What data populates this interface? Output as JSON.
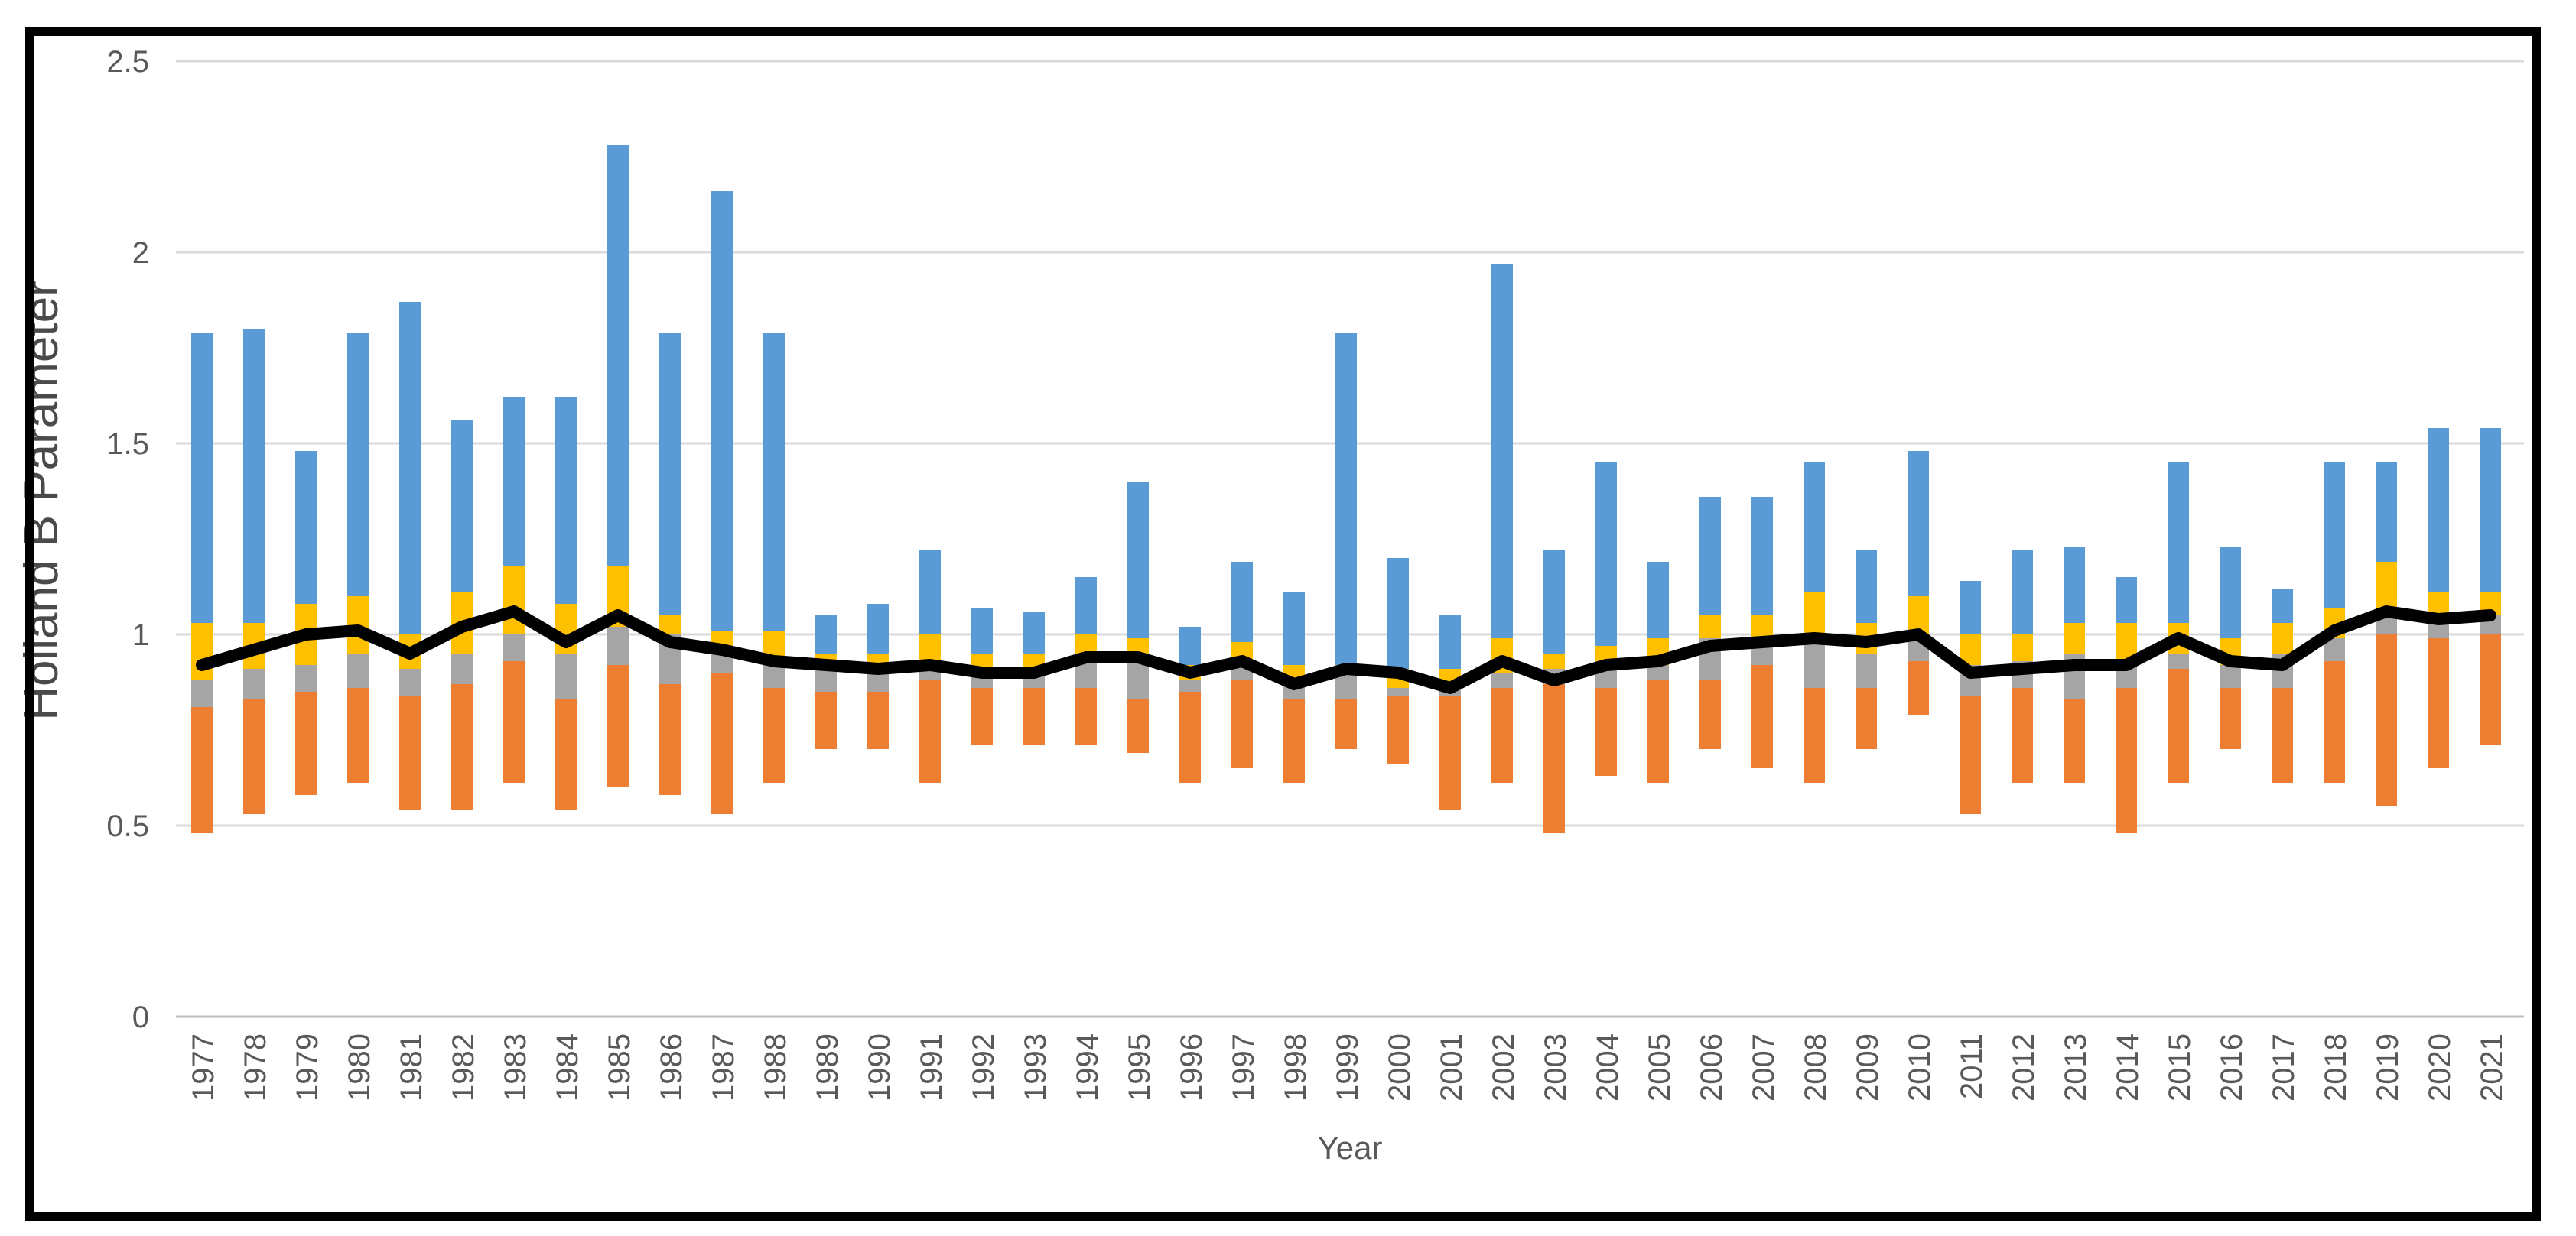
{
  "chart_data": {
    "type": "bar",
    "subtype": "stacked-floating-range-with-line",
    "title": "",
    "xlabel": "Year",
    "ylabel": "Holland B Parameter",
    "ylim": [
      0,
      2.5
    ],
    "grid": true,
    "legend": "none",
    "ytick_values": [
      0,
      0.5,
      1,
      1.5,
      2,
      2.5
    ],
    "ytick_labels": [
      "0",
      "0.5",
      "1",
      "1.5",
      "2",
      "2.5"
    ],
    "categories": [
      "1977",
      "1978",
      "1979",
      "1980",
      "1981",
      "1982",
      "1983",
      "1984",
      "1985",
      "1986",
      "1987",
      "1988",
      "1989",
      "1990",
      "1991",
      "1992",
      "1993",
      "1994",
      "1995",
      "1996",
      "1997",
      "1998",
      "1999",
      "2000",
      "2001",
      "2002",
      "2003",
      "2004",
      "2005",
      "2006",
      "2007",
      "2008",
      "2009",
      "2010",
      "2011",
      "2012",
      "2013",
      "2014",
      "2015",
      "2016",
      "2017",
      "2018",
      "2019",
      "2020",
      "2021"
    ],
    "segments": [
      {
        "name": "orange-lower-range",
        "color": "#ED7D31",
        "from": [
          0.48,
          0.53,
          0.58,
          0.61,
          0.54,
          0.54,
          0.61,
          0.54,
          0.6,
          0.58,
          0.53,
          0.61,
          0.7,
          0.7,
          0.61,
          0.71,
          0.71,
          0.71,
          0.69,
          0.61,
          0.65,
          0.61,
          0.7,
          0.66,
          0.54,
          0.61,
          0.48,
          0.63,
          0.61,
          0.7,
          0.65,
          0.61,
          0.7,
          0.79,
          0.53,
          0.61,
          0.61,
          0.48,
          0.61,
          0.7,
          0.61,
          0.61,
          0.55,
          0.65,
          0.71
        ],
        "to": [
          0.81,
          0.83,
          0.85,
          0.86,
          0.84,
          0.87,
          0.93,
          0.83,
          0.92,
          0.87,
          0.9,
          0.86,
          0.85,
          0.85,
          0.88,
          0.86,
          0.86,
          0.86,
          0.83,
          0.85,
          0.88,
          0.83,
          0.83,
          0.84,
          0.84,
          0.86,
          0.87,
          0.86,
          0.88,
          0.88,
          0.92,
          0.86,
          0.86,
          0.93,
          0.84,
          0.86,
          0.83,
          0.86,
          0.91,
          0.86,
          0.86,
          0.93,
          1.0,
          0.99,
          1.0
        ]
      },
      {
        "name": "gray-mid-range",
        "color": "#A5A5A5",
        "from": [
          0.81,
          0.83,
          0.85,
          0.86,
          0.84,
          0.87,
          0.93,
          0.83,
          0.92,
          0.87,
          0.9,
          0.86,
          0.85,
          0.85,
          0.88,
          0.86,
          0.86,
          0.86,
          0.83,
          0.85,
          0.88,
          0.83,
          0.83,
          0.84,
          0.84,
          0.86,
          0.87,
          0.86,
          0.88,
          0.88,
          0.92,
          0.86,
          0.86,
          0.93,
          0.84,
          0.86,
          0.83,
          0.86,
          0.91,
          0.86,
          0.86,
          0.93,
          1.0,
          0.99,
          1.0
        ],
        "to": [
          0.88,
          0.91,
          0.92,
          0.95,
          0.91,
          0.95,
          1.0,
          0.95,
          1.02,
          1.0,
          0.95,
          0.93,
          0.91,
          0.9,
          0.93,
          0.89,
          0.91,
          0.95,
          0.94,
          0.88,
          0.93,
          0.87,
          0.91,
          0.86,
          0.87,
          0.9,
          0.91,
          0.91,
          0.92,
          0.99,
          0.99,
          1.0,
          0.95,
          0.99,
          0.92,
          0.93,
          0.95,
          0.93,
          0.95,
          0.92,
          0.95,
          0.99,
          1.05,
          1.04,
          1.05
        ]
      },
      {
        "name": "yellow-upper-mid-range",
        "color": "#FFC000",
        "from": [
          0.88,
          0.91,
          0.92,
          0.95,
          0.91,
          0.95,
          1.0,
          0.95,
          1.02,
          1.0,
          0.95,
          0.93,
          0.91,
          0.9,
          0.93,
          0.89,
          0.91,
          0.95,
          0.94,
          0.88,
          0.93,
          0.87,
          0.91,
          0.86,
          0.87,
          0.9,
          0.91,
          0.91,
          0.92,
          0.99,
          0.99,
          1.0,
          0.95,
          0.99,
          0.92,
          0.93,
          0.95,
          0.93,
          0.95,
          0.92,
          0.95,
          0.99,
          1.05,
          1.04,
          1.05
        ],
        "to": [
          1.03,
          1.03,
          1.08,
          1.1,
          1.0,
          1.11,
          1.18,
          1.08,
          1.18,
          1.05,
          1.01,
          1.01,
          0.95,
          0.95,
          1.0,
          0.95,
          0.95,
          1.0,
          0.99,
          0.92,
          0.98,
          0.92,
          0.92,
          0.91,
          0.91,
          0.99,
          0.95,
          0.97,
          0.99,
          1.05,
          1.05,
          1.11,
          1.03,
          1.1,
          1.0,
          1.0,
          1.03,
          1.03,
          1.03,
          0.99,
          1.03,
          1.07,
          1.19,
          1.11,
          1.11
        ]
      },
      {
        "name": "blue-upper-range",
        "color": "#5B9BD5",
        "from": [
          1.03,
          1.03,
          1.08,
          1.1,
          1.0,
          1.11,
          1.18,
          1.08,
          1.18,
          1.05,
          1.01,
          1.01,
          0.95,
          0.95,
          1.0,
          0.95,
          0.95,
          1.0,
          0.99,
          0.92,
          0.98,
          0.92,
          0.92,
          0.91,
          0.91,
          0.99,
          0.95,
          0.97,
          0.99,
          1.05,
          1.05,
          1.11,
          1.03,
          1.1,
          1.0,
          1.0,
          1.03,
          1.03,
          1.03,
          0.99,
          1.03,
          1.07,
          1.19,
          1.11,
          1.11
        ],
        "to": [
          1.79,
          1.8,
          1.48,
          1.79,
          1.87,
          1.56,
          1.62,
          1.62,
          2.28,
          1.79,
          2.16,
          1.79,
          1.05,
          1.08,
          1.22,
          1.07,
          1.06,
          1.15,
          1.4,
          1.02,
          1.19,
          1.11,
          1.79,
          1.2,
          1.05,
          1.97,
          1.22,
          1.45,
          1.19,
          1.36,
          1.36,
          1.45,
          1.22,
          1.48,
          1.14,
          1.22,
          1.23,
          1.15,
          1.45,
          1.23,
          1.12,
          1.45,
          1.45,
          1.54,
          1.54
        ]
      }
    ],
    "line": {
      "name": "black-line-series",
      "color": "#000000",
      "values": [
        0.92,
        0.96,
        1.0,
        1.01,
        0.95,
        1.02,
        1.06,
        0.98,
        1.05,
        0.98,
        0.96,
        0.93,
        0.92,
        0.91,
        0.92,
        0.9,
        0.9,
        0.94,
        0.94,
        0.9,
        0.93,
        0.87,
        0.91,
        0.9,
        0.86,
        0.93,
        0.88,
        0.92,
        0.93,
        0.97,
        0.98,
        0.99,
        0.98,
        1.0,
        0.9,
        0.91,
        0.92,
        0.92,
        0.99,
        0.93,
        0.92,
        1.01,
        1.06,
        1.04,
        1.05
      ]
    },
    "colors": {
      "background": "#FFFFFF",
      "gridline": "#D9D9D9",
      "axis_line": "#BFBFBF",
      "tick_label": "#595959",
      "axis_title": "#595959",
      "frame_border": "#000000"
    }
  }
}
